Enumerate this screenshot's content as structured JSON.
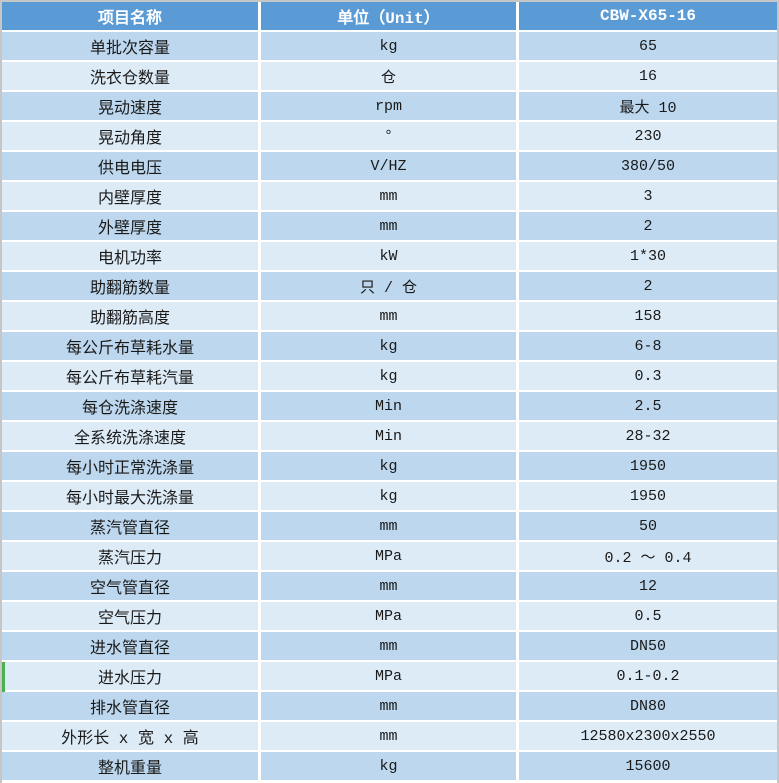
{
  "table": {
    "headers": [
      "项目名称",
      "单位（Unit）",
      "CBW-X65-16"
    ],
    "rows": [
      [
        "单批次容量",
        "kg",
        "65"
      ],
      [
        "洗衣仓数量",
        "仓",
        "16"
      ],
      [
        "晃动速度",
        "rpm",
        "最大 10"
      ],
      [
        "晃动角度",
        "°",
        "230"
      ],
      [
        "供电电压",
        "V/HZ",
        "380/50"
      ],
      [
        "内壁厚度",
        "mm",
        "3"
      ],
      [
        "外壁厚度",
        "mm",
        "2"
      ],
      [
        "电机功率",
        "kW",
        "1*30"
      ],
      [
        "助翻筋数量",
        "只 / 仓",
        "2"
      ],
      [
        "助翻筋高度",
        "mm",
        "158"
      ],
      [
        "每公斤布草耗水量",
        "kg",
        "6-8"
      ],
      [
        "每公斤布草耗汽量",
        "kg",
        "0.3"
      ],
      [
        "每仓洗涤速度",
        "Min",
        "2.5"
      ],
      [
        "全系统洗涤速度",
        "Min",
        "28-32"
      ],
      [
        "每小时正常洗涤量",
        "kg",
        "1950"
      ],
      [
        "每小时最大洗涤量",
        "kg",
        "1950"
      ],
      [
        "蒸汽管直径",
        "mm",
        "50"
      ],
      [
        "蒸汽压力",
        "MPa",
        "0.2 ～ 0.4"
      ],
      [
        "空气管直径",
        "mm",
        "12"
      ],
      [
        "空气压力",
        "MPa",
        "0.5"
      ],
      [
        "进水管直径",
        "mm",
        "DN50"
      ],
      [
        "进水压力",
        "MPa",
        "0.1-0.2"
      ],
      [
        "排水管直径",
        "mm",
        "DN80"
      ],
      [
        "外形长 x 宽 x 高",
        "mm",
        "12580x2300x2550"
      ],
      [
        "整机重量",
        "kg",
        "15600"
      ]
    ],
    "green_marker_row_index": 21
  },
  "colors": {
    "header_bg": "#5b9bd5",
    "header_text": "#ffffff",
    "row_odd_bg": "#bdd7ee",
    "row_even_bg": "#ddebf7",
    "grid_line": "#ffffff",
    "outer_border": "#c6c6c6",
    "body_text": "#1a1a1a",
    "green_marker": "#4caf50"
  }
}
